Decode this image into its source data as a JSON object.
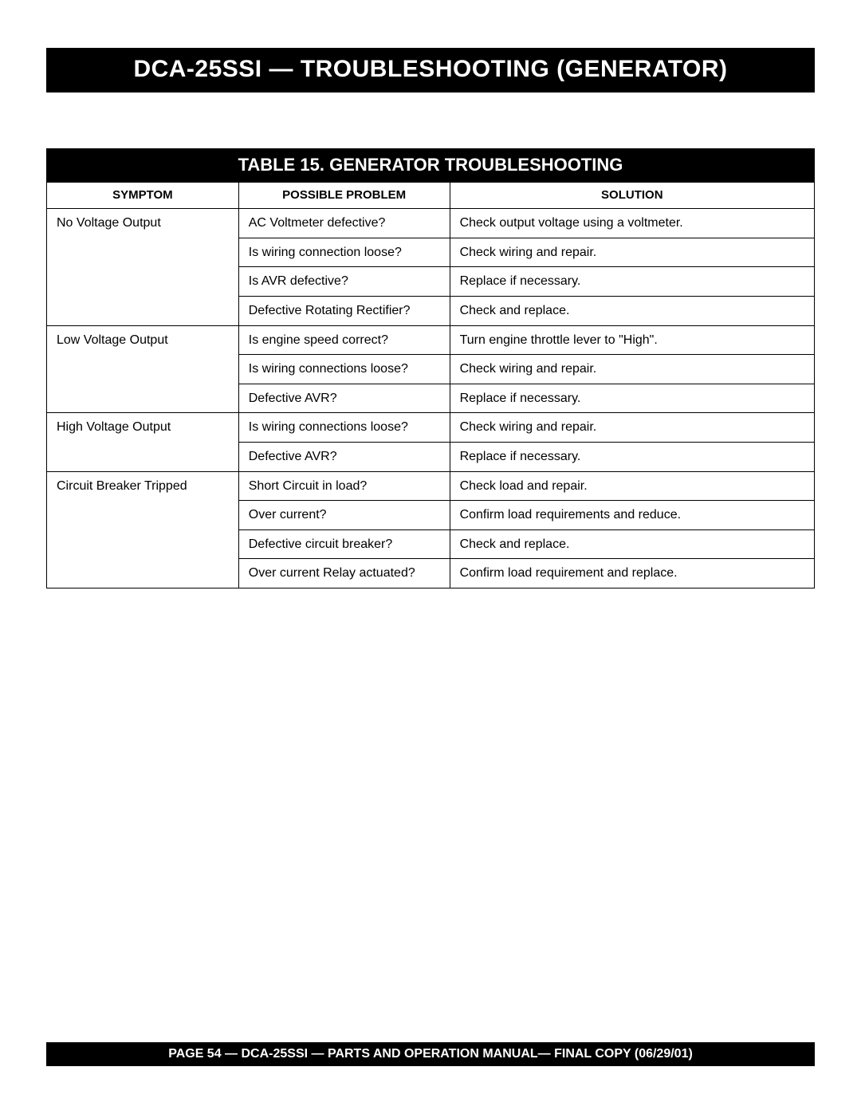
{
  "header": {
    "title": "DCA-25SSI — TROUBLESHOOTING (GENERATOR)"
  },
  "table": {
    "title": "TABLE 15.  GENERATOR TROUBLESHOOTING",
    "columns": [
      "SYMPTOM",
      "POSSIBLE PROBLEM",
      "SOLUTION"
    ],
    "column_widths_pct": [
      25,
      27.5,
      47.5
    ],
    "header_fontsize": 15,
    "cell_fontsize": 16,
    "border_color": "#000000",
    "title_bg": "#000000",
    "title_color": "#ffffff",
    "groups": [
      {
        "symptom": "No Voltage Output",
        "rows": [
          {
            "problem": "AC Voltmeter defective?",
            "solution": "Check output voltage using a voltmeter."
          },
          {
            "problem": "Is wiring connection loose?",
            "solution": "Check wiring and repair."
          },
          {
            "problem": "Is AVR defective?",
            "solution": "Replace if necessary."
          },
          {
            "problem": "Defective Rotating Rectifier?",
            "solution": "Check and replace."
          }
        ]
      },
      {
        "symptom": "Low Voltage Output",
        "rows": [
          {
            "problem": "Is engine speed correct?",
            "solution": "Turn engine throttle lever to \"High\"."
          },
          {
            "problem": "Is wiring connections loose?",
            "solution": "Check wiring and repair."
          },
          {
            "problem": "Defective AVR?",
            "solution": "Replace if necessary."
          }
        ]
      },
      {
        "symptom": "High Voltage Output",
        "rows": [
          {
            "problem": "Is wiring connections loose?",
            "solution": "Check wiring and repair."
          },
          {
            "problem": "Defective AVR?",
            "solution": "Replace if necessary."
          }
        ]
      },
      {
        "symptom": "Circuit Breaker Tripped",
        "rows": [
          {
            "problem": "Short Circuit in load?",
            "solution": "Check load and repair."
          },
          {
            "problem": "Over current?",
            "solution": "Confirm load requirements and reduce."
          },
          {
            "problem": "Defective circuit breaker?",
            "solution": "Check and replace."
          },
          {
            "problem": "Over current Relay actuated?",
            "solution": "Confirm load requirement and replace."
          }
        ]
      }
    ]
  },
  "footer": {
    "text": "PAGE 54 — DCA-25SSI — PARTS AND OPERATION  MANUAL— FINAL COPY  (06/29/01)"
  },
  "colors": {
    "page_bg": "#ffffff",
    "banner_bg": "#000000",
    "banner_text": "#ffffff"
  }
}
